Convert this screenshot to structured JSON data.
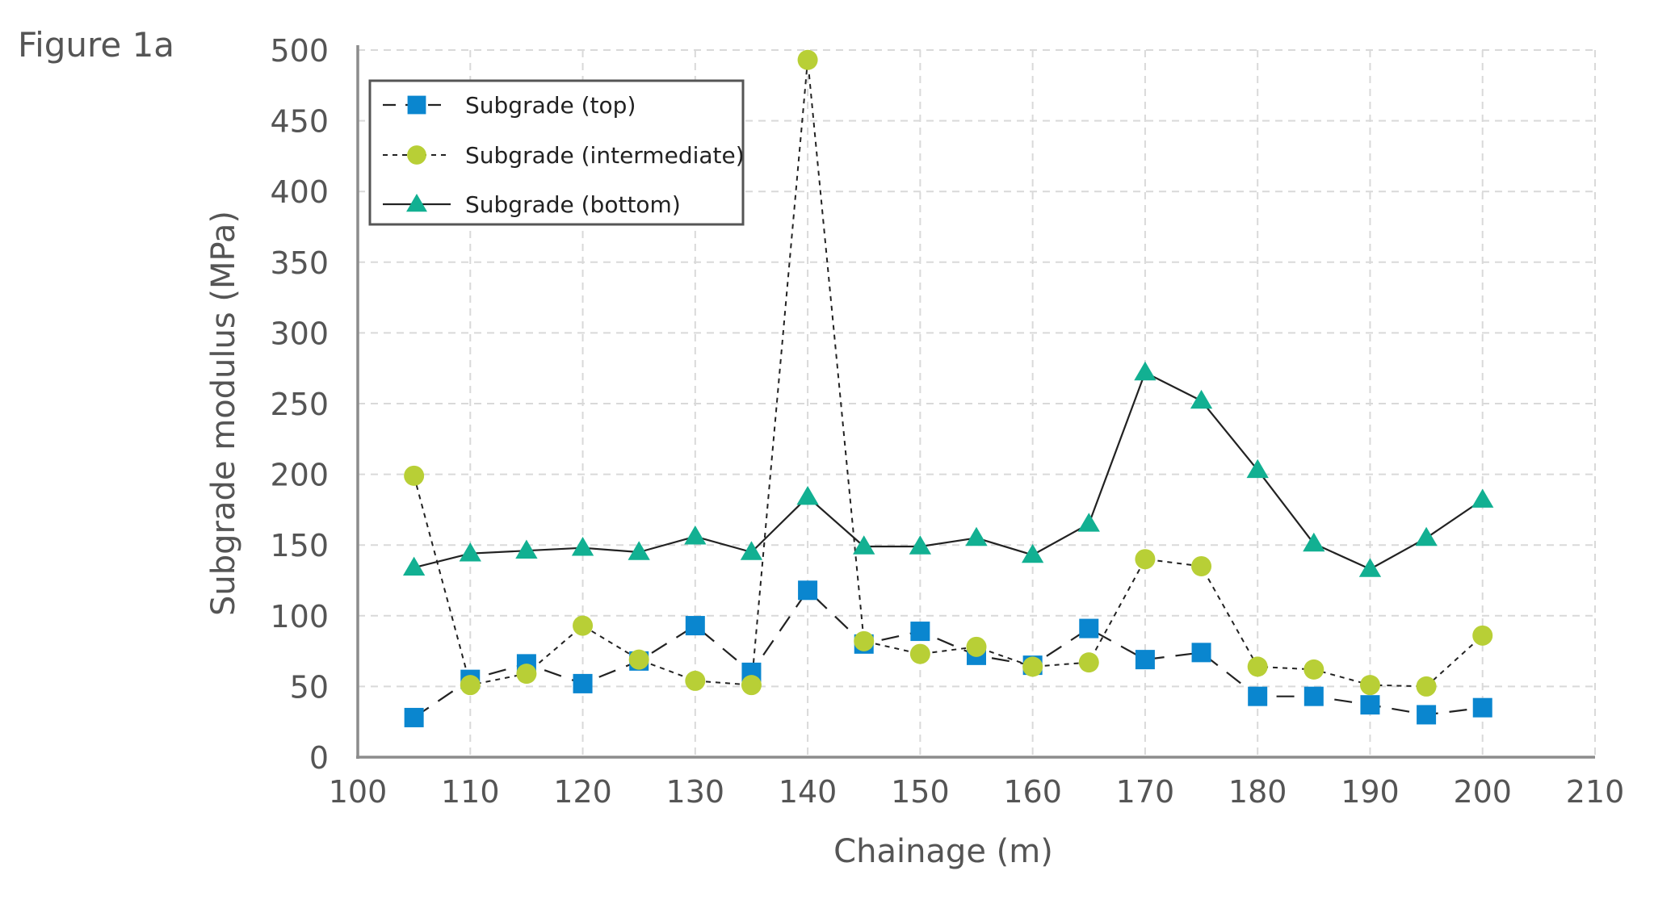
{
  "figure_label": "Figure 1a",
  "colors": {
    "top": "#0a86cf",
    "intermediate": "#b8cf36",
    "bottom": "#12b092",
    "line": "#222222",
    "axis": "#8c8c8c",
    "grid": "#d9d9d9"
  },
  "chart_data": {
    "type": "line",
    "xlabel": "Chainage (m)",
    "ylabel": "Subgrade modulus (MPa)",
    "xlim": [
      100,
      210
    ],
    "ylim": [
      0,
      500
    ],
    "x_ticks": [
      "100",
      "110",
      "120",
      "130",
      "140",
      "150",
      "160",
      "170",
      "180",
      "190",
      "200",
      "210"
    ],
    "y_ticks": [
      "0",
      "50",
      "100",
      "150",
      "200",
      "250",
      "300",
      "350",
      "400",
      "450",
      "500"
    ],
    "grid": true,
    "legend_position": "top-left",
    "series": [
      {
        "name": "Subgrade (top)",
        "marker": "square",
        "line_style": "dashed",
        "points": [
          [
            105,
            28
          ],
          [
            110,
            55
          ],
          [
            115,
            66
          ],
          [
            120,
            52
          ],
          [
            125,
            68
          ],
          [
            130,
            93
          ],
          [
            135,
            60
          ],
          [
            140,
            118
          ],
          [
            145,
            80
          ],
          [
            150,
            89
          ],
          [
            155,
            72
          ],
          [
            160,
            65
          ],
          [
            165,
            91
          ],
          [
            170,
            69
          ],
          [
            175,
            74
          ],
          [
            180,
            43
          ],
          [
            185,
            43
          ],
          [
            190,
            37
          ],
          [
            195,
            30
          ],
          [
            200,
            35
          ]
        ]
      },
      {
        "name": "Subgrade (intermediate)",
        "marker": "circle",
        "line_style": "dotted",
        "points": [
          [
            105,
            199
          ],
          [
            110,
            51
          ],
          [
            115,
            59
          ],
          [
            120,
            93
          ],
          [
            125,
            69
          ],
          [
            130,
            54
          ],
          [
            135,
            51
          ],
          [
            140,
            493
          ],
          [
            145,
            82
          ],
          [
            150,
            73
          ],
          [
            155,
            78
          ],
          [
            160,
            64
          ],
          [
            165,
            67
          ],
          [
            170,
            140
          ],
          [
            175,
            135
          ],
          [
            180,
            64
          ],
          [
            185,
            62
          ],
          [
            190,
            51
          ],
          [
            195,
            50
          ],
          [
            200,
            86
          ]
        ]
      },
      {
        "name": "Subgrade (bottom)",
        "marker": "triangle",
        "line_style": "solid",
        "points": [
          [
            105,
            134
          ],
          [
            110,
            144
          ],
          [
            115,
            146
          ],
          [
            120,
            148
          ],
          [
            125,
            145
          ],
          [
            130,
            156
          ],
          [
            135,
            145
          ],
          [
            140,
            184
          ],
          [
            145,
            149
          ],
          [
            150,
            149
          ],
          [
            155,
            155
          ],
          [
            160,
            143
          ],
          [
            165,
            165
          ],
          [
            170,
            272
          ],
          [
            175,
            252
          ],
          [
            180,
            203
          ],
          [
            185,
            151
          ],
          [
            190,
            133
          ],
          [
            195,
            155
          ],
          [
            200,
            182
          ]
        ]
      }
    ]
  }
}
